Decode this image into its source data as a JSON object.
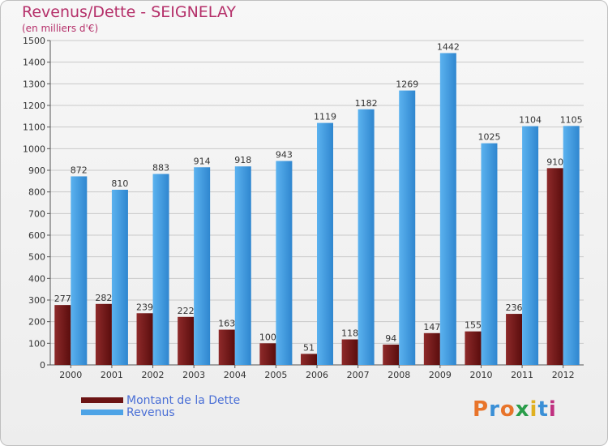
{
  "title": "Revenus/Dette - SEIGNELAY",
  "subtitle": "(en milliers d'€)",
  "logo": {
    "letters": [
      "P",
      "r",
      "o",
      "x",
      "i",
      "t",
      "i"
    ],
    "colors": [
      "#e8742a",
      "#3a8fd6",
      "#e8742a",
      "#2a9d4a",
      "#e0b020",
      "#3a8fd6",
      "#c03080"
    ]
  },
  "chart_data": {
    "type": "bar",
    "categories": [
      "2000",
      "2001",
      "2002",
      "2003",
      "2004",
      "2005",
      "2006",
      "2007",
      "2008",
      "2009",
      "2010",
      "2011",
      "2012"
    ],
    "series": [
      {
        "name": "Montant de la Dette",
        "color": "#7a1a1a",
        "values": [
          277,
          282,
          239,
          222,
          163,
          100,
          51,
          118,
          94,
          147,
          155,
          236,
          910
        ]
      },
      {
        "name": "Revenus",
        "color": "#4da3e6",
        "values": [
          872,
          810,
          883,
          914,
          918,
          943,
          1119,
          1182,
          1269,
          1442,
          1025,
          1104,
          1105
        ]
      }
    ],
    "ylim": [
      0,
      1500
    ],
    "yticks": [
      "0",
      "100",
      "200",
      "300",
      "400",
      "500",
      "600",
      "700",
      "800",
      "900",
      "1000",
      "1100",
      "1200",
      "1300",
      "1400",
      "1500"
    ],
    "grid": true,
    "legend_position": "bottom-left"
  }
}
